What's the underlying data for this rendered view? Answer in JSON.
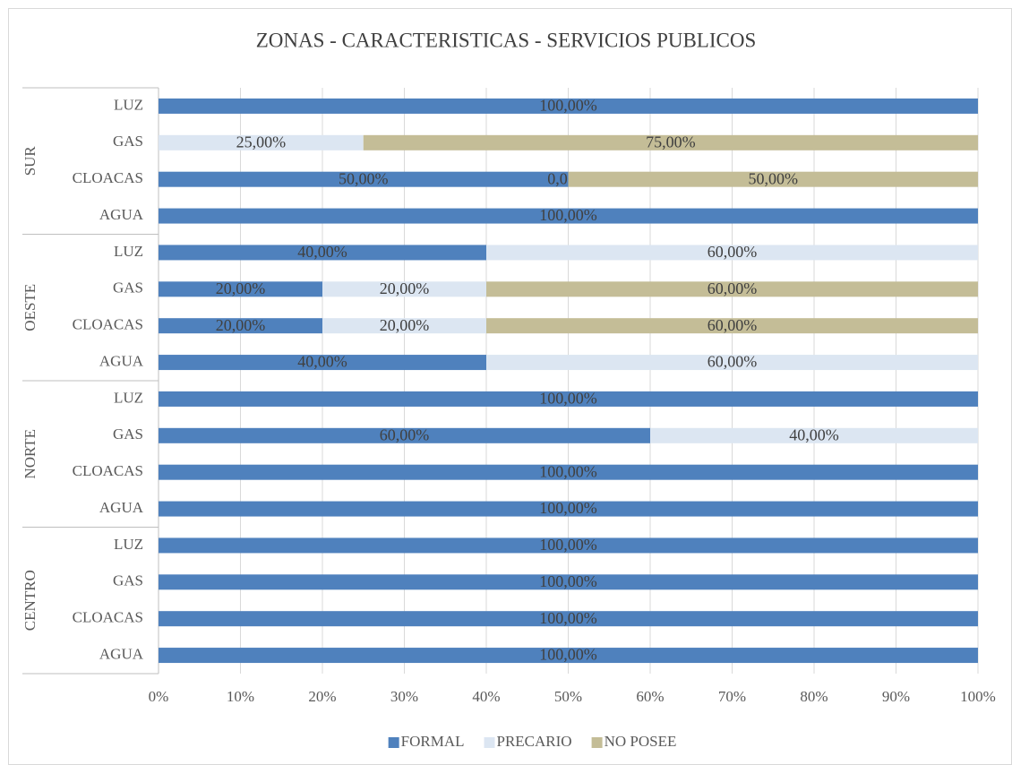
{
  "chart_data": {
    "type": "stacked_barh",
    "title": "ZONAS - CARACTERISTICAS - SERVICIOS PUBLICOS",
    "groups": [
      {
        "name": "SUR",
        "categories": [
          "LUZ",
          "GAS",
          "CLOACAS",
          "AGUA"
        ]
      },
      {
        "name": "OESTE",
        "categories": [
          "LUZ",
          "GAS",
          "CLOACAS",
          "AGUA"
        ]
      },
      {
        "name": "NORTE",
        "categories": [
          "LUZ",
          "GAS",
          "CLOACAS",
          "AGUA"
        ]
      },
      {
        "name": "CENTRO",
        "categories": [
          "LUZ",
          "GAS",
          "CLOACAS",
          "AGUA"
        ]
      }
    ],
    "series": [
      {
        "name": "FORMAL",
        "color": "#4f81bd",
        "values": [
          100,
          null,
          50,
          100,
          40,
          20,
          20,
          40,
          100,
          60,
          100,
          100,
          100,
          100,
          100,
          100
        ],
        "value_labels": [
          "100,00%",
          null,
          "50,00%",
          "100,00%",
          "40,00%",
          "20,00%",
          "20,00%",
          "40,00%",
          "100,00%",
          "60,00%",
          "100,00%",
          "100,00%",
          "100,00%",
          "100,00%",
          "100,00%",
          "100,00%"
        ]
      },
      {
        "name": "PRECARIO",
        "color": "#dce6f2",
        "values": [
          null,
          25,
          0,
          null,
          60,
          20,
          20,
          60,
          null,
          40,
          null,
          null,
          null,
          null,
          null,
          null
        ],
        "value_labels": [
          null,
          "25,00%",
          "0,00%",
          null,
          "60,00%",
          "20,00%",
          "20,00%",
          "60,00%",
          null,
          "40,00%",
          null,
          null,
          null,
          null,
          null,
          null
        ]
      },
      {
        "name": "NO POSEE",
        "color": "#c4bd97",
        "values": [
          null,
          75,
          50,
          null,
          null,
          60,
          60,
          null,
          null,
          null,
          null,
          null,
          null,
          null,
          null,
          null
        ],
        "value_labels": [
          null,
          "75,00%",
          "50,00%",
          null,
          null,
          "60,00%",
          "60,00%",
          null,
          null,
          null,
          null,
          null,
          null,
          null,
          null,
          null
        ]
      }
    ],
    "xlim": [
      0,
      100
    ],
    "xticks": [
      {
        "value": 0,
        "label": "0%"
      },
      {
        "value": 10,
        "label": "10%"
      },
      {
        "value": 20,
        "label": "20%"
      },
      {
        "value": 30,
        "label": "30%"
      },
      {
        "value": 40,
        "label": "40%"
      },
      {
        "value": 50,
        "label": "50%"
      },
      {
        "value": 60,
        "label": "60%"
      },
      {
        "value": 70,
        "label": "70%"
      },
      {
        "value": 80,
        "label": "80%"
      },
      {
        "value": 90,
        "label": "90%"
      },
      {
        "value": 100,
        "label": "100%"
      }
    ],
    "grid": true,
    "legend": "bottom"
  }
}
